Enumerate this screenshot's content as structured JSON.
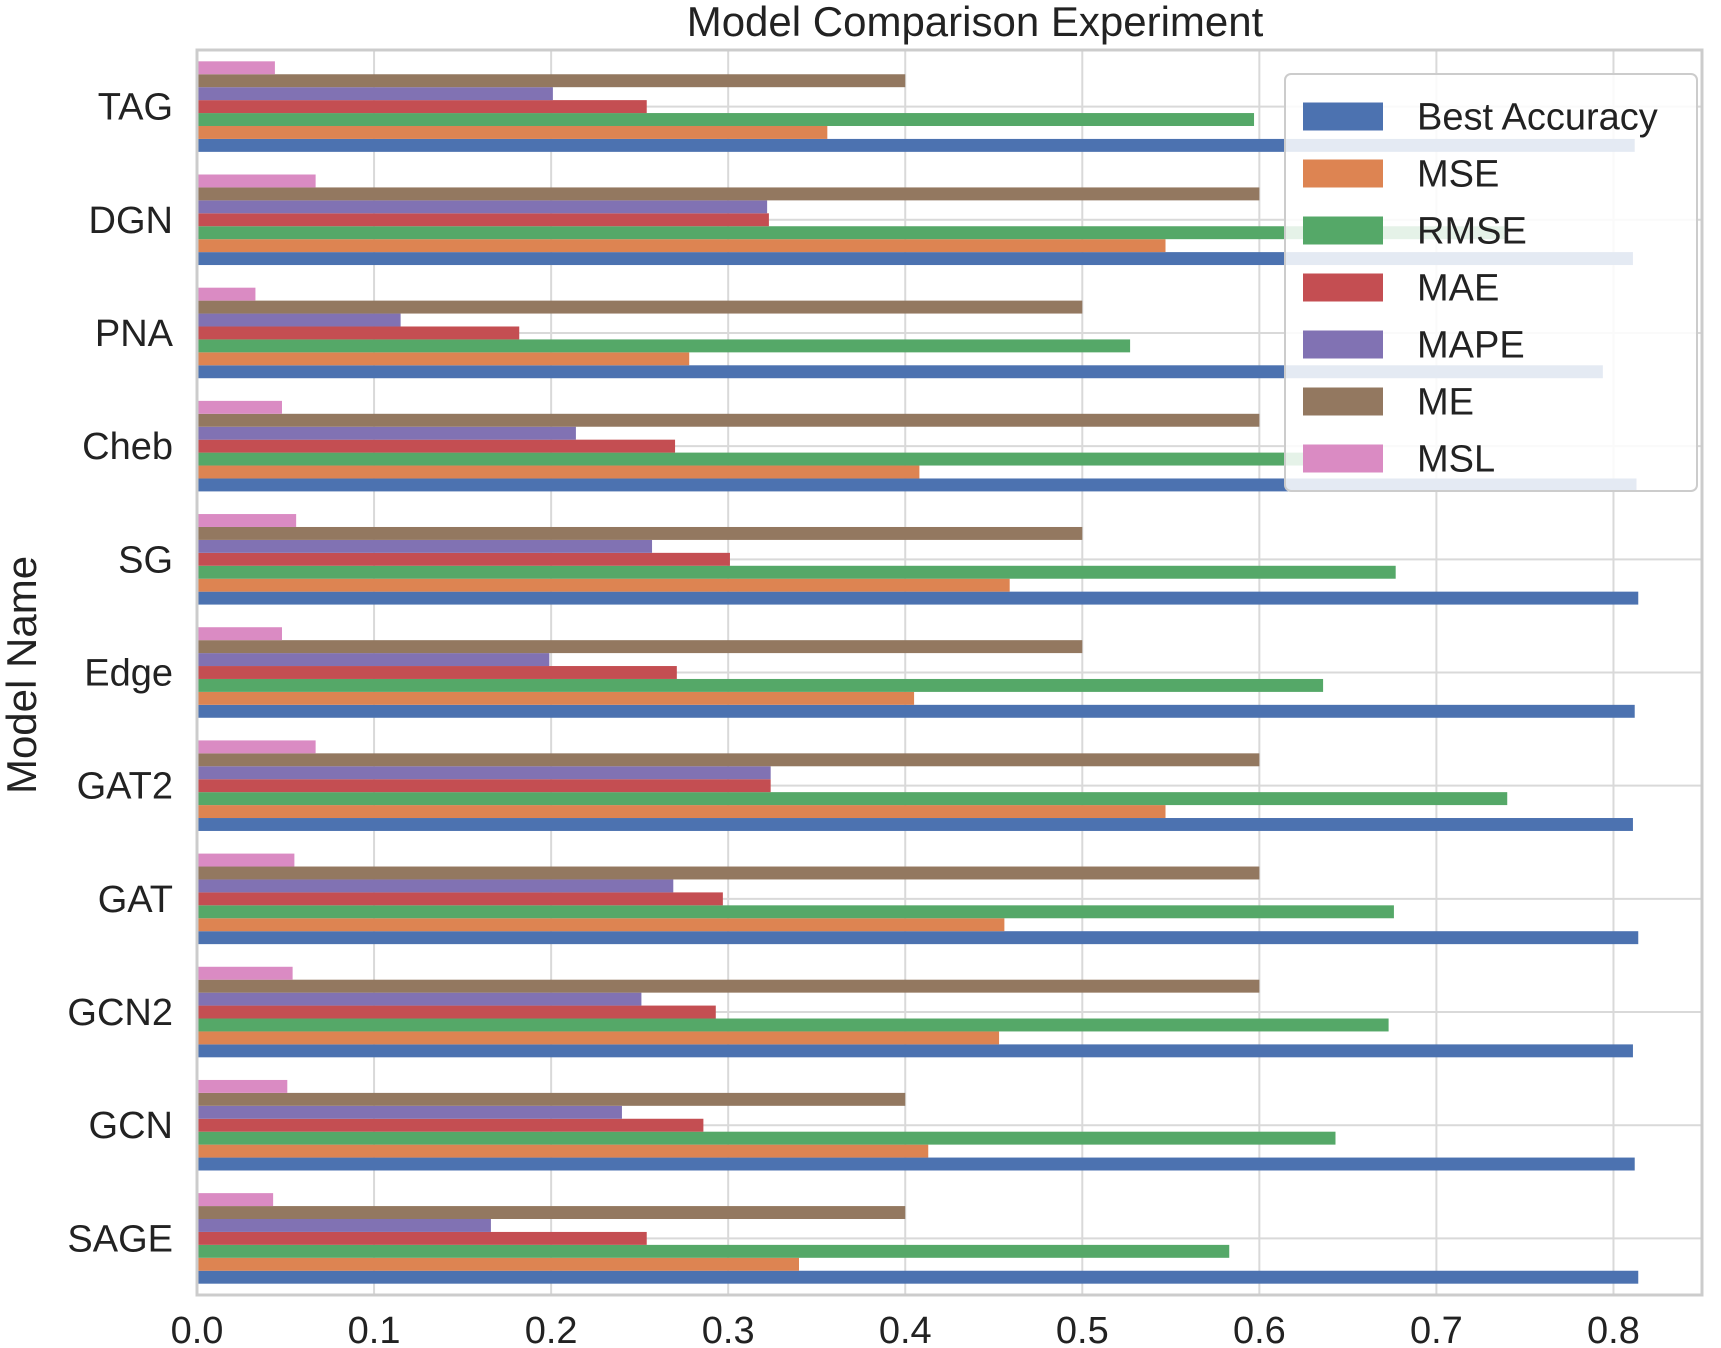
{
  "chart_data": {
    "type": "bar",
    "orientation": "horizontal",
    "title": "Model Comparison Experiment",
    "xlabel": "",
    "ylabel": "Model Name",
    "xlim": [
      0.0,
      0.85
    ],
    "xticks": [
      "0.0",
      "0.1",
      "0.2",
      "0.3",
      "0.4",
      "0.5",
      "0.6",
      "0.7",
      "0.8"
    ],
    "grid": true,
    "legend_position": "top-right",
    "categories": [
      "TAG",
      "DGN",
      "PNA",
      "Cheb",
      "SG",
      "Edge",
      "GAT2",
      "GAT",
      "GCN2",
      "GCN",
      "SAGE"
    ],
    "series": [
      {
        "name": "Best Accuracy",
        "color": "#4C72B0",
        "values": [
          0.812,
          0.811,
          0.794,
          0.813,
          0.814,
          0.812,
          0.811,
          0.814,
          0.811,
          0.812,
          0.814
        ]
      },
      {
        "name": "MSE",
        "color": "#DD8452",
        "values": [
          0.356,
          0.547,
          0.278,
          0.408,
          0.459,
          0.405,
          0.547,
          0.456,
          0.453,
          0.413,
          0.34
        ]
      },
      {
        "name": "RMSE",
        "color": "#55A868",
        "values": [
          0.597,
          0.739,
          0.527,
          0.639,
          0.677,
          0.636,
          0.74,
          0.676,
          0.673,
          0.643,
          0.583
        ]
      },
      {
        "name": "MAE",
        "color": "#C44E52",
        "values": [
          0.254,
          0.323,
          0.182,
          0.27,
          0.301,
          0.271,
          0.324,
          0.297,
          0.293,
          0.286,
          0.254
        ]
      },
      {
        "name": "MAPE",
        "color": "#8172B3",
        "values": [
          0.201,
          0.322,
          0.115,
          0.214,
          0.257,
          0.199,
          0.324,
          0.269,
          0.251,
          0.24,
          0.166
        ]
      },
      {
        "name": "ME",
        "color": "#937860",
        "values": [
          0.4,
          0.6,
          0.5,
          0.6,
          0.5,
          0.5,
          0.6,
          0.6,
          0.6,
          0.4,
          0.4
        ]
      },
      {
        "name": "MSL",
        "color": "#DA8BC3",
        "values": [
          0.044,
          0.067,
          0.033,
          0.048,
          0.056,
          0.048,
          0.067,
          0.055,
          0.054,
          0.051,
          0.043
        ]
      }
    ]
  }
}
